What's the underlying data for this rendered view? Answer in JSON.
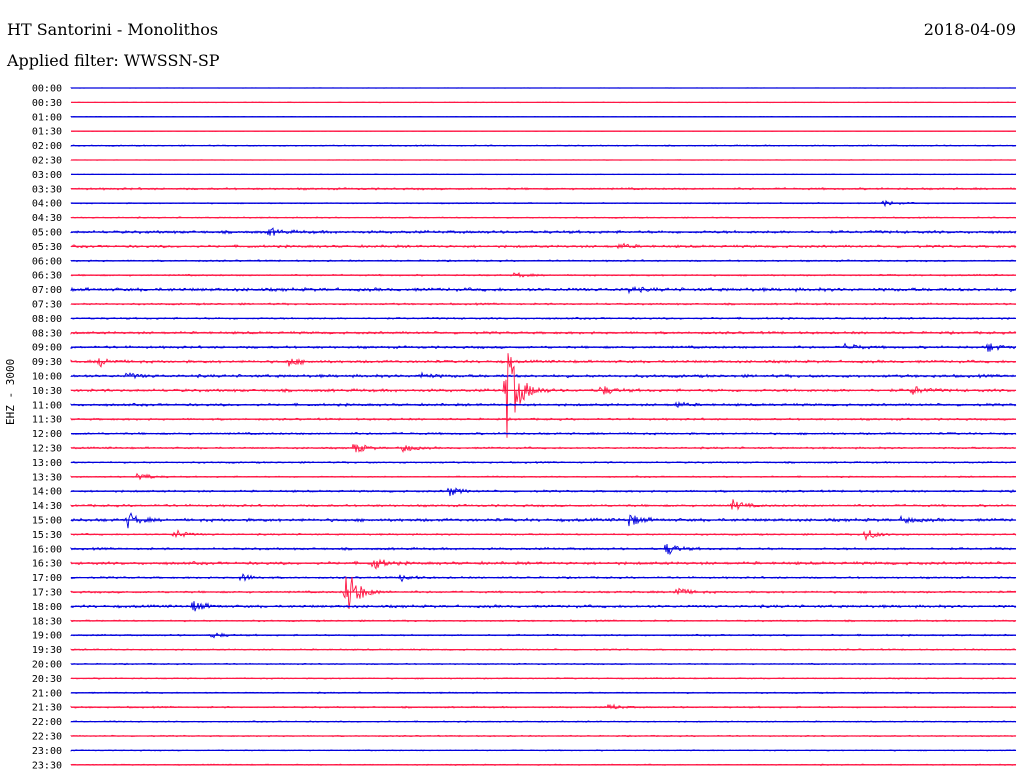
{
  "header": {
    "station": "HT Santorini - Monolithos",
    "date": "2018-04-09",
    "filter_label": "Applied filter: WWSSN-SP"
  },
  "channel_label": "EHZ - 3000",
  "colors": {
    "even": "#0000dd",
    "odd": "#ff1744"
  },
  "chart_data": {
    "type": "line",
    "title": "HT Santorini - Monolithos",
    "ylabel": "EHZ - 3000",
    "rows": [
      "00:00",
      "00:30",
      "01:00",
      "01:30",
      "02:00",
      "02:30",
      "03:00",
      "03:30",
      "04:00",
      "04:30",
      "05:00",
      "05:30",
      "06:00",
      "06:30",
      "07:00",
      "07:30",
      "08:00",
      "08:30",
      "09:00",
      "09:30",
      "10:00",
      "10:30",
      "11:00",
      "11:30",
      "12:00",
      "12:30",
      "13:00",
      "13:30",
      "14:00",
      "14:30",
      "15:00",
      "15:30",
      "16:00",
      "16:30",
      "17:00",
      "17:30",
      "18:00",
      "18:30",
      "19:00",
      "19:30",
      "20:00",
      "20:30",
      "21:00",
      "21:30",
      "22:00",
      "22:30",
      "23:00",
      "23:30"
    ],
    "noise_level": [
      0.2,
      0.3,
      0.3,
      0.2,
      0.6,
      0.3,
      0.3,
      1.0,
      0.6,
      0.6,
      1.4,
      1.2,
      0.8,
      0.8,
      1.6,
      0.9,
      0.9,
      1.2,
      1.2,
      1.3,
      1.4,
      1.4,
      1.2,
      1.0,
      1.0,
      0.9,
      0.8,
      0.7,
      1.0,
      1.1,
      1.5,
      0.8,
      1.1,
      1.4,
      0.9,
      1.0,
      1.3,
      0.8,
      0.8,
      0.7,
      0.6,
      0.6,
      0.7,
      0.8,
      0.6,
      0.6,
      0.5,
      0.6
    ],
    "events": [
      {
        "row": "04:00",
        "pos": 0.86,
        "amp": 3
      },
      {
        "row": "05:00",
        "pos": 0.21,
        "amp": 4
      },
      {
        "row": "05:30",
        "pos": 0.58,
        "amp": 3
      },
      {
        "row": "06:30",
        "pos": 0.47,
        "amp": 3
      },
      {
        "row": "07:00",
        "pos": 0.59,
        "amp": 3
      },
      {
        "row": "09:00",
        "pos": 0.82,
        "amp": 5
      },
      {
        "row": "09:00",
        "pos": 0.97,
        "amp": 5
      },
      {
        "row": "09:30",
        "pos": 0.03,
        "amp": 5
      },
      {
        "row": "09:30",
        "pos": 0.23,
        "amp": 5
      },
      {
        "row": "10:00",
        "pos": 0.06,
        "amp": 3
      },
      {
        "row": "10:00",
        "pos": 0.37,
        "amp": 3
      },
      {
        "row": "10:30",
        "pos": 0.46,
        "amp": 55
      },
      {
        "row": "10:30",
        "pos": 0.56,
        "amp": 6
      },
      {
        "row": "10:30",
        "pos": 0.89,
        "amp": 5
      },
      {
        "row": "11:00",
        "pos": 0.64,
        "amp": 3
      },
      {
        "row": "12:30",
        "pos": 0.3,
        "amp": 6
      },
      {
        "row": "12:30",
        "pos": 0.35,
        "amp": 5
      },
      {
        "row": "13:30",
        "pos": 0.07,
        "amp": 6
      },
      {
        "row": "14:00",
        "pos": 0.4,
        "amp": 5
      },
      {
        "row": "14:30",
        "pos": 0.7,
        "amp": 6
      },
      {
        "row": "15:00",
        "pos": 0.06,
        "amp": 8
      },
      {
        "row": "15:00",
        "pos": 0.59,
        "amp": 7
      },
      {
        "row": "15:00",
        "pos": 0.88,
        "amp": 4
      },
      {
        "row": "15:30",
        "pos": 0.11,
        "amp": 5
      },
      {
        "row": "15:30",
        "pos": 0.84,
        "amp": 7
      },
      {
        "row": "16:00",
        "pos": 0.63,
        "amp": 7
      },
      {
        "row": "16:30",
        "pos": 0.32,
        "amp": 7
      },
      {
        "row": "17:00",
        "pos": 0.18,
        "amp": 4
      },
      {
        "row": "17:00",
        "pos": 0.35,
        "amp": 4
      },
      {
        "row": "17:30",
        "pos": 0.29,
        "amp": 30
      },
      {
        "row": "17:30",
        "pos": 0.64,
        "amp": 6
      },
      {
        "row": "18:00",
        "pos": 0.13,
        "amp": 6
      },
      {
        "row": "19:00",
        "pos": 0.15,
        "amp": 3
      },
      {
        "row": "21:30",
        "pos": 0.57,
        "amp": 3
      }
    ]
  }
}
